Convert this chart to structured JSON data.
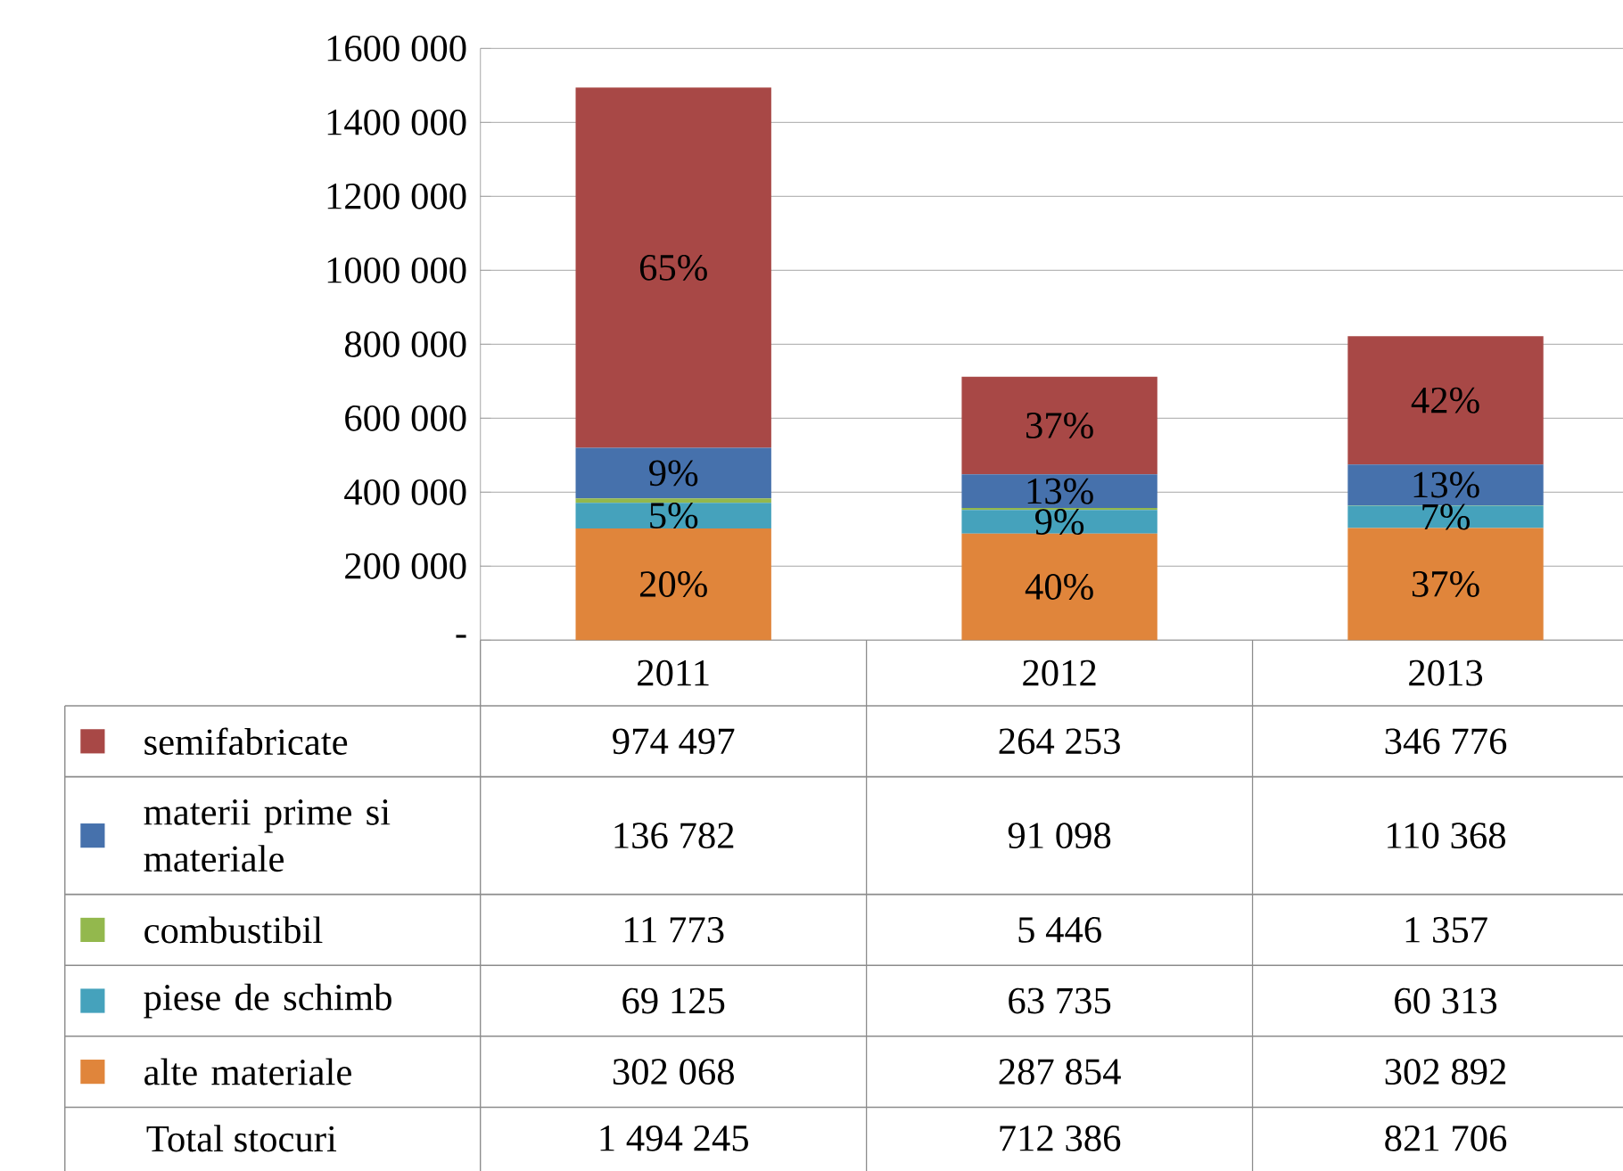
{
  "chart_data": {
    "type": "bar",
    "stacked": true,
    "categories": [
      "2011",
      "2012",
      "2013"
    ],
    "series": [
      {
        "name": "alte materiale",
        "color": "#e0853b",
        "values": [
          302068,
          287854,
          302892
        ],
        "value_labels": [
          "302 068",
          "287 854",
          "302 892"
        ]
      },
      {
        "name": "piese de schimb",
        "color": "#45a2bc",
        "values": [
          69125,
          63735,
          60313
        ],
        "value_labels": [
          "69 125",
          "63 735",
          "60 313"
        ]
      },
      {
        "name": "combustibil",
        "color": "#93b84d",
        "values": [
          11773,
          5446,
          1357
        ],
        "value_labels": [
          "11 773",
          "5 446",
          "1 357"
        ]
      },
      {
        "name": "materii prime si materiale",
        "color": "#4671ac",
        "values": [
          136782,
          91098,
          110368
        ],
        "value_labels": [
          "136 782",
          "91 098",
          "110 368"
        ]
      },
      {
        "name": "semifabricate",
        "color": "#a84846",
        "values": [
          974497,
          264253,
          346776
        ],
        "value_labels": [
          "974 497",
          "264 253",
          "346 776"
        ]
      }
    ],
    "annotations": [
      "Total stocuri",
      "1 494 245",
      "712 386",
      "821 706",
      "20%",
      "40%",
      "37%",
      "5%",
      "9%",
      "7%",
      "9%",
      "13%",
      "13%",
      "65%",
      "37%",
      "42%"
    ],
    "ylim": [
      0,
      1600000
    ],
    "yticks": [
      {
        "value": 0,
        "label": "-"
      },
      {
        "value": 200000,
        "label": "200 000"
      },
      {
        "value": 400000,
        "label": "400 000"
      },
      {
        "value": 600000,
        "label": "600 000"
      },
      {
        "value": 800000,
        "label": "800 000"
      },
      {
        "value": 1000000,
        "label": "1000 000"
      },
      {
        "value": 1200000,
        "label": "1200 000"
      },
      {
        "value": 1400000,
        "label": "1400 000"
      },
      {
        "value": 1600000,
        "label": "1600 000"
      }
    ],
    "grid": "y",
    "legend": "bottom"
  }
}
